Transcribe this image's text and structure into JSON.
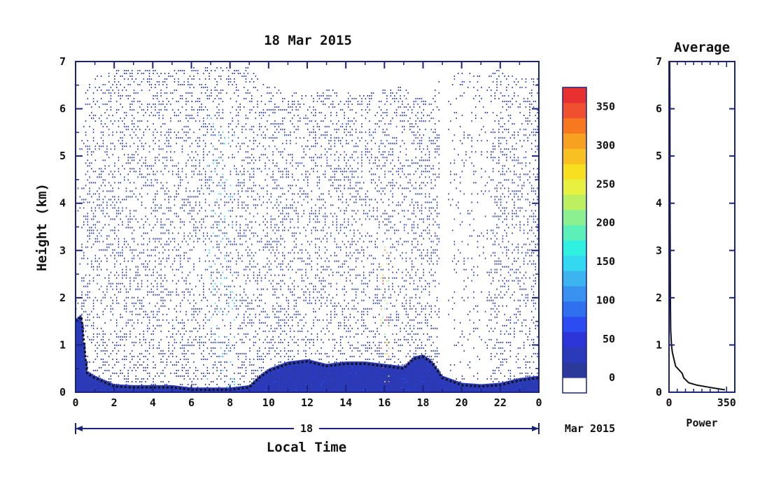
{
  "chart_data": [
    {
      "type": "heatmap",
      "title": "18 Mar 2015",
      "xlabel": "Local Time",
      "ylabel": "Height (km)",
      "date_axis_label": "18",
      "date_suffix": "Mar 2015",
      "xlim": [
        0,
        24
      ],
      "ylim": [
        0,
        7
      ],
      "x_ticks": [
        "0",
        "2",
        "4",
        "6",
        "8",
        "10",
        "12",
        "14",
        "16",
        "18",
        "20",
        "22",
        "0"
      ],
      "y_ticks": [
        "0",
        "1",
        "2",
        "3",
        "4",
        "5",
        "6",
        "7"
      ],
      "colorbar": {
        "min": 0,
        "max": 375,
        "tick_labels": [
          "0",
          "50",
          "100",
          "150",
          "200",
          "250",
          "300",
          "350"
        ],
        "colors": [
          "#2b3a9a",
          "#2a3ab8",
          "#2c35d8",
          "#2b4cf0",
          "#2f6ff0",
          "#3a92f0",
          "#3cb4f0",
          "#34d8f0",
          "#30f0e0",
          "#5cf0b8",
          "#8cf090",
          "#bcf060",
          "#e8f040",
          "#f8e020",
          "#f8c020",
          "#f8a020",
          "#f87820",
          "#f05030",
          "#e83030"
        ]
      },
      "boundary_layer_height_km": {
        "x": [
          0,
          0.3,
          0.6,
          1,
          2,
          3,
          4,
          5,
          6,
          7,
          8,
          9,
          9.5,
          10,
          11,
          12,
          13,
          14,
          15,
          16,
          17,
          17.5,
          18,
          18.5,
          19,
          20,
          21,
          22,
          23,
          24
        ],
        "y": [
          1.5,
          1.6,
          0.4,
          0.3,
          0.12,
          0.1,
          0.1,
          0.1,
          0.05,
          0.05,
          0.05,
          0.1,
          0.3,
          0.45,
          0.6,
          0.65,
          0.55,
          0.6,
          0.6,
          0.55,
          0.5,
          0.7,
          0.75,
          0.6,
          0.3,
          0.15,
          0.12,
          0.15,
          0.25,
          0.3
        ]
      }
    },
    {
      "type": "line",
      "title": "Average",
      "xlabel": "Power",
      "ylabel": "",
      "xlim": [
        0,
        400
      ],
      "ylim": [
        0,
        7
      ],
      "x_ticks": [
        "0",
        "350"
      ],
      "y_ticks": [
        "0",
        "1",
        "2",
        "3",
        "4",
        "5",
        "6",
        "7"
      ],
      "series": [
        {
          "x": [
            340,
            250,
            170,
            120,
            90,
            80,
            40,
            30,
            20,
            15,
            10,
            8,
            6,
            5,
            4
          ],
          "y": [
            0.05,
            0.1,
            0.15,
            0.2,
            0.3,
            0.4,
            0.55,
            0.7,
            0.85,
            1.0,
            1.3,
            2.0,
            4.0,
            6.0,
            7.0
          ]
        }
      ]
    }
  ]
}
